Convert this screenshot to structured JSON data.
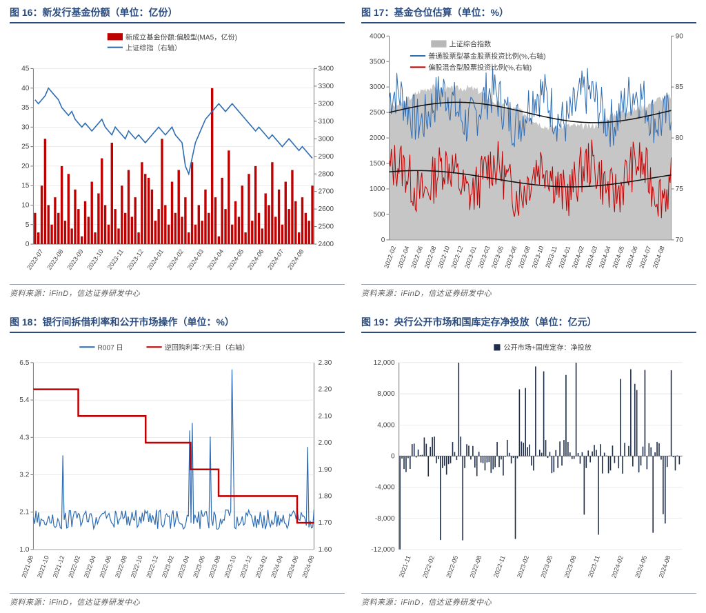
{
  "colors": {
    "title": "#2a4b7c",
    "red": "#c00000",
    "blue": "#2f6db3",
    "navy": "#1f2e4a",
    "gray_area": "#b8b8b8",
    "grid": "#d9d9d9",
    "axis": "#7a7a7a",
    "border": "#a0a8b8"
  },
  "chart16": {
    "title": "图 16：新发行基金份额（单位：亿份）",
    "source": "资料来源：iFinD，信达证券研发中心",
    "type": "bar+line dual-axis",
    "legend": [
      {
        "label": "新成立基金份额:偏股型(MA5，亿份)",
        "color": "#c00000",
        "kind": "bar"
      },
      {
        "label": "上证综指（右轴）",
        "color": "#2f6db3",
        "kind": "line"
      }
    ],
    "left_axis": {
      "min": 0,
      "max": 45,
      "step": 5
    },
    "right_axis": {
      "min": 2400,
      "max": 3400,
      "step": 100
    },
    "x_labels": [
      "2023-07",
      "2023-08",
      "2023-09",
      "2023-10",
      "2023-11",
      "2023-12",
      "2024-01",
      "2024-02",
      "2024-03",
      "2024-04",
      "2024-05",
      "2024-06",
      "2024-07",
      "2024-08"
    ],
    "bars": [
      8,
      3,
      15,
      27,
      10,
      5,
      12,
      8,
      20,
      6,
      18,
      4,
      14,
      9,
      2,
      11,
      7,
      16,
      3,
      13,
      22,
      10,
      5,
      26,
      9,
      4,
      15,
      8,
      19,
      7,
      12,
      3,
      21,
      18,
      17,
      14,
      6,
      9,
      27,
      10,
      5,
      16,
      8,
      19,
      7,
      12,
      3,
      21,
      5,
      10,
      6,
      14,
      8,
      40,
      12,
      2,
      17,
      9,
      24,
      5,
      11,
      7,
      15,
      3,
      18,
      6,
      20,
      8,
      4,
      13,
      10,
      21,
      7,
      14,
      5,
      16,
      9,
      19,
      11,
      3,
      12,
      8,
      6,
      15
    ],
    "line": [
      37,
      36,
      37,
      38,
      40,
      39,
      38,
      37,
      35,
      34,
      33,
      34,
      32,
      31,
      30,
      31,
      30,
      29,
      30,
      31,
      32,
      30,
      29,
      28,
      30,
      29,
      28,
      27,
      29,
      28,
      27,
      28,
      27,
      26,
      27,
      28,
      29,
      30,
      29,
      28,
      29,
      30,
      28,
      27,
      26,
      20,
      18,
      22,
      26,
      28,
      30,
      32,
      33,
      34,
      35,
      36,
      35,
      34,
      35,
      36,
      35,
      34,
      33,
      32,
      31,
      30,
      29,
      30,
      29,
      28,
      27,
      28,
      27,
      26,
      25,
      26,
      27,
      26,
      25,
      24,
      25,
      24,
      23,
      22
    ]
  },
  "chart17": {
    "title": "图 17：基金仓位估算（单位：%）",
    "source": "资料来源：iFinD，信达证券研发中心",
    "type": "area+2lines dual-axis",
    "legend": [
      {
        "label": "上证综合指数",
        "color": "#b8b8b8",
        "kind": "area"
      },
      {
        "label": "普通股票型基金股票投资比例(%,右轴)",
        "color": "#2f6db3",
        "kind": "line"
      },
      {
        "label": "偏股混合型股票投资比例(%,右轴)",
        "color": "#c00000",
        "kind": "line"
      }
    ],
    "left_axis": {
      "min": 0,
      "max": 4000,
      "step": 500
    },
    "right_axis": {
      "min": 70,
      "max": 90,
      "step": 5
    },
    "x_labels": [
      "2022-02",
      "2022-04",
      "2022-06",
      "2022-08",
      "2022-10",
      "2022-12",
      "2023-01",
      "2023-03",
      "2023-05",
      "2023-06",
      "2023-08",
      "2023-10",
      "2023-11",
      "2024-01",
      "2024-02",
      "2024-03",
      "2024-04",
      "2024-05",
      "2024-06",
      "2024-07",
      "2024-08"
    ]
  },
  "chart18": {
    "title": "图 18：银行间拆借利率和公开市场操作（单位：%）",
    "source": "资料来源：iFinD，信达证券研发中心",
    "type": "2lines dual-axis",
    "legend": [
      {
        "label": "R007 日",
        "color": "#2f6db3",
        "kind": "line"
      },
      {
        "label": "逆回购利率:7天:日（右轴）",
        "color": "#c00000",
        "kind": "line"
      }
    ],
    "left_axis": {
      "min": 1.0,
      "max": 6.5,
      "step": 1.1,
      "ticks": [
        1.0,
        2.1,
        3.2,
        4.3,
        5.4,
        6.5
      ]
    },
    "right_axis": {
      "min": 1.6,
      "max": 2.3,
      "step": 0.1,
      "ticks": [
        1.6,
        1.7,
        1.8,
        1.9,
        2.0,
        2.1,
        2.2,
        2.3
      ]
    },
    "x_labels": [
      "2021-08",
      "2021-10",
      "2021-12",
      "2022-02",
      "2022-04",
      "2022-06",
      "2022-08",
      "2022-10",
      "2022-12",
      "2023-02",
      "2023-04",
      "2023-06",
      "2023-08",
      "2023-10",
      "2023-12",
      "2024-02",
      "2024-04",
      "2024-06",
      "2024-08"
    ],
    "step_line": [
      {
        "x": 0,
        "y": 2.2
      },
      {
        "x": 0.16,
        "y": 2.2
      },
      {
        "x": 0.16,
        "y": 2.1
      },
      {
        "x": 0.3,
        "y": 2.1
      },
      {
        "x": 0.3,
        "y": 2.1
      },
      {
        "x": 0.4,
        "y": 2.1
      },
      {
        "x": 0.4,
        "y": 2.0
      },
      {
        "x": 0.56,
        "y": 2.0
      },
      {
        "x": 0.56,
        "y": 1.9
      },
      {
        "x": 0.66,
        "y": 1.9
      },
      {
        "x": 0.66,
        "y": 1.8
      },
      {
        "x": 0.94,
        "y": 1.8
      },
      {
        "x": 0.94,
        "y": 1.7
      },
      {
        "x": 1.0,
        "y": 1.7
      }
    ]
  },
  "chart19": {
    "title": "图 19：央行公开市场和国库定存净投放（单位：亿元）",
    "source": "资料来源：iFinD，信达证券研发中心",
    "type": "bar",
    "legend": [
      {
        "label": "公开市场+国库定存：净投放",
        "color": "#2f6db3",
        "kind": "bar"
      }
    ],
    "left_axis": {
      "min": -12000,
      "max": 12000,
      "step": 4000
    },
    "x_labels": [
      "2021-11",
      "2022-02",
      "2022-05",
      "2022-08",
      "2022-11",
      "2023-02",
      "2023-05",
      "2023-08",
      "2023-11",
      "2024-02",
      "2024-05",
      "2024-08"
    ]
  }
}
